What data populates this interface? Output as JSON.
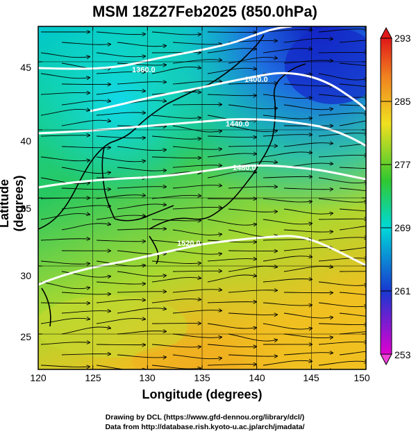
{
  "title": "MSM 18Z27Feb2025 (850.0hPa)",
  "axes": {
    "xlabel": "Longitude (degrees)",
    "ylabel": "Latitude  (degrees)",
    "xticks": [
      "120",
      "125",
      "130",
      "135",
      "140",
      "145",
      "150"
    ],
    "yticks": [
      "45",
      "40",
      "35",
      "30",
      "25"
    ],
    "xlim": [
      120,
      150
    ],
    "ylim": [
      22.4,
      47.6
    ]
  },
  "colorbar": {
    "ticks": [
      "293",
      "285",
      "277",
      "269",
      "261",
      "253"
    ],
    "range": [
      253,
      293
    ]
  },
  "contour_labels": [
    "1360.0",
    "1400.0",
    "1440.0",
    "1480.0",
    "1520.0"
  ],
  "credits": {
    "line1": "Drawing by DCL (https://www.gfd-dennou.org/library/dcl/)",
    "line2": "Data from http://database.rish.kyoto-u.ac.jp/arch/jmadata/"
  },
  "colors": {
    "cold": "#1b3bd6",
    "cyan": "#00d7d0",
    "green": "#28c83c",
    "yellow": "#f0e020",
    "orange": "#f4a020",
    "red": "#e82020",
    "magenta": "#d800c8"
  }
}
